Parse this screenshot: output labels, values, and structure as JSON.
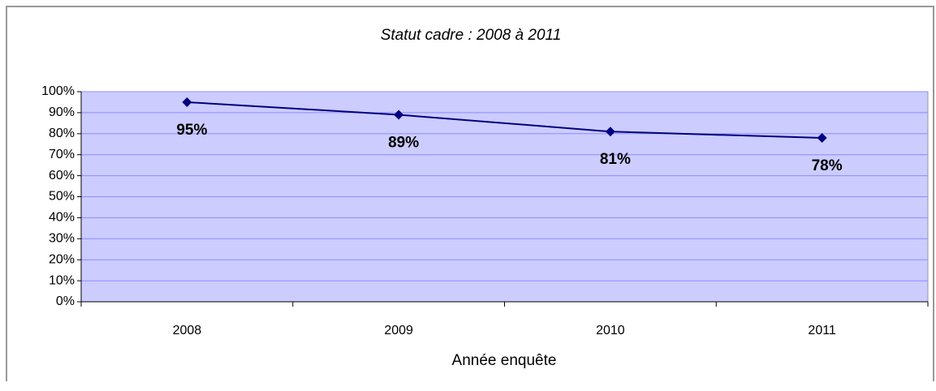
{
  "chart_data": {
    "type": "line",
    "title": "Statut cadre : 2008 à 2011",
    "x_label": "Année enquête",
    "categories": [
      "2008",
      "2009",
      "2010",
      "2011"
    ],
    "values": [
      95,
      89,
      81,
      78
    ],
    "value_labels": [
      "95%",
      "89%",
      "81%",
      "78%"
    ],
    "color": "#000080",
    "ylim": [
      0,
      100
    ],
    "yticks": [
      {
        "value": 0,
        "label": "0%"
      },
      {
        "value": 10,
        "label": "10%"
      },
      {
        "value": 20,
        "label": "20%"
      },
      {
        "value": 30,
        "label": "30%"
      },
      {
        "value": 40,
        "label": "40%"
      },
      {
        "value": 50,
        "label": "50%"
      },
      {
        "value": 60,
        "label": "60%"
      },
      {
        "value": 70,
        "label": "70%"
      },
      {
        "value": 80,
        "label": "80%"
      },
      {
        "value": 90,
        "label": "90%"
      },
      {
        "value": 100,
        "label": "100%"
      }
    ],
    "grid": true
  }
}
